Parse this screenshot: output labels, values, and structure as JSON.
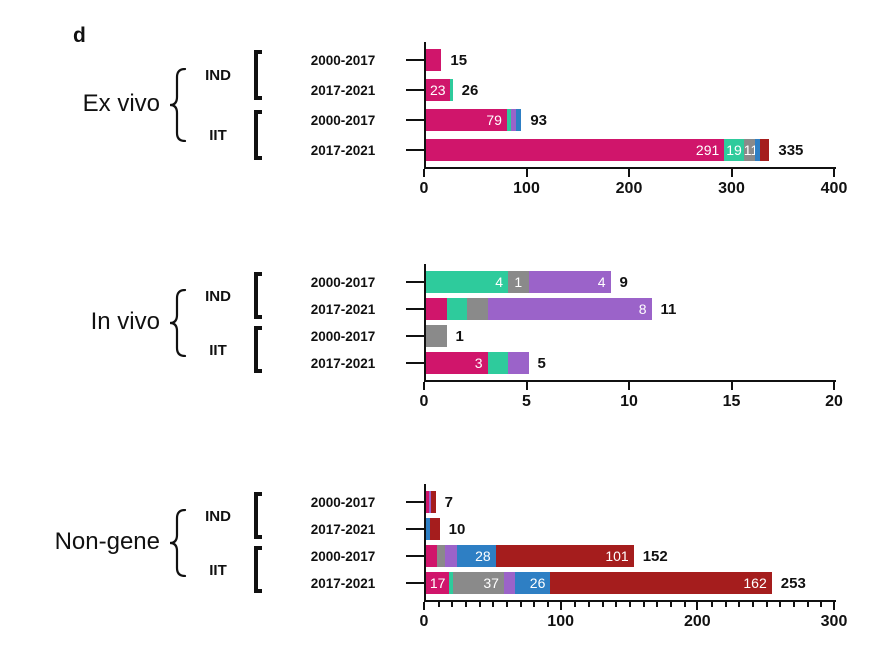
{
  "figure": {
    "panel_letter": "d"
  },
  "colors": {
    "pink": "#d0156b",
    "green": "#2ecb9c",
    "gray": "#8a8a8a",
    "purple": "#9b63c9",
    "blue": "#2e7fc4",
    "darkred": "#a51d1d",
    "axis": "#111111",
    "bar_label": "#ffffff"
  },
  "chart_data": [
    {
      "type": "bar",
      "orientation": "horizontal",
      "group_label": "Ex vivo",
      "subgroups": [
        "IND",
        "IIT"
      ],
      "axis": {
        "min": 0,
        "max": 400,
        "major_ticks": [
          0,
          100,
          200,
          300,
          400
        ],
        "minor_step": null
      },
      "rows": [
        {
          "subgroup": "IND",
          "period": "2000-2017",
          "total": 15,
          "segments": [
            {
              "series": "pink",
              "value": 15,
              "show_label": false
            }
          ]
        },
        {
          "subgroup": "IND",
          "period": "2017-2021",
          "total": 26,
          "segments": [
            {
              "series": "pink",
              "value": 23,
              "show_label": true
            },
            {
              "series": "green",
              "value": 3,
              "show_label": false
            }
          ]
        },
        {
          "subgroup": "IIT",
          "period": "2000-2017",
          "total": 93,
          "segments": [
            {
              "series": "pink",
              "value": 79,
              "show_label": true
            },
            {
              "series": "green",
              "value": 4,
              "show_label": false
            },
            {
              "series": "purple",
              "value": 5,
              "show_label": false
            },
            {
              "series": "blue",
              "value": 5,
              "show_label": false
            }
          ]
        },
        {
          "subgroup": "IIT",
          "period": "2017-2021",
          "total": 335,
          "segments": [
            {
              "series": "pink",
              "value": 291,
              "show_label": true
            },
            {
              "series": "green",
              "value": 19,
              "show_label": true
            },
            {
              "series": "gray",
              "value": 11,
              "show_label": true
            },
            {
              "series": "blue",
              "value": 5,
              "show_label": false
            },
            {
              "series": "darkred",
              "value": 9,
              "show_label": false
            }
          ]
        }
      ]
    },
    {
      "type": "bar",
      "orientation": "horizontal",
      "group_label": "In vivo",
      "subgroups": [
        "IND",
        "IIT"
      ],
      "axis": {
        "min": 0,
        "max": 20,
        "major_ticks": [
          0,
          5,
          10,
          15,
          20
        ],
        "minor_step": null
      },
      "rows": [
        {
          "subgroup": "IND",
          "period": "2000-2017",
          "total": 9,
          "segments": [
            {
              "series": "green",
              "value": 4,
              "show_label": true
            },
            {
              "series": "gray",
              "value": 1,
              "show_label": true
            },
            {
              "series": "purple",
              "value": 4,
              "show_label": true
            }
          ]
        },
        {
          "subgroup": "IND",
          "period": "2017-2021",
          "total": 11,
          "segments": [
            {
              "series": "pink",
              "value": 1,
              "show_label": false
            },
            {
              "series": "green",
              "value": 1,
              "show_label": false
            },
            {
              "series": "gray",
              "value": 1,
              "show_label": false
            },
            {
              "series": "purple",
              "value": 8,
              "show_label": true
            }
          ]
        },
        {
          "subgroup": "IIT",
          "period": "2000-2017",
          "total": 1,
          "segments": [
            {
              "series": "gray",
              "value": 1,
              "show_label": false
            }
          ]
        },
        {
          "subgroup": "IIT",
          "period": "2017-2021",
          "total": 5,
          "segments": [
            {
              "series": "pink",
              "value": 3,
              "show_label": true
            },
            {
              "series": "green",
              "value": 1,
              "show_label": false
            },
            {
              "series": "purple",
              "value": 1,
              "show_label": false
            }
          ]
        }
      ]
    },
    {
      "type": "bar",
      "orientation": "horizontal",
      "group_label": "Non-gene",
      "subgroups": [
        "IND",
        "IIT"
      ],
      "axis": {
        "min": 0,
        "max": 300,
        "major_ticks": [
          0,
          100,
          200,
          300
        ],
        "minor_step": 10
      },
      "rows": [
        {
          "subgroup": "IND",
          "period": "2000-2017",
          "total": 7,
          "segments": [
            {
              "series": "pink",
              "value": 2,
              "show_label": false
            },
            {
              "series": "purple",
              "value": 2,
              "show_label": false
            },
            {
              "series": "darkred",
              "value": 3,
              "show_label": false
            }
          ]
        },
        {
          "subgroup": "IND",
          "period": "2017-2021",
          "total": 10,
          "segments": [
            {
              "series": "blue",
              "value": 3,
              "show_label": false
            },
            {
              "series": "darkred",
              "value": 7,
              "show_label": false
            }
          ]
        },
        {
          "subgroup": "IIT",
          "period": "2000-2017",
          "total": 152,
          "segments": [
            {
              "series": "pink",
              "value": 8,
              "show_label": false
            },
            {
              "series": "gray",
              "value": 6,
              "show_label": false
            },
            {
              "series": "purple",
              "value": 9,
              "show_label": false
            },
            {
              "series": "blue",
              "value": 28,
              "show_label": true
            },
            {
              "series": "darkred",
              "value": 101,
              "show_label": true
            }
          ]
        },
        {
          "subgroup": "IIT",
          "period": "2017-2021",
          "total": 253,
          "segments": [
            {
              "series": "pink",
              "value": 17,
              "show_label": true
            },
            {
              "series": "green",
              "value": 3,
              "show_label": false
            },
            {
              "series": "gray",
              "value": 37,
              "show_label": true
            },
            {
              "series": "purple",
              "value": 8,
              "show_label": false
            },
            {
              "series": "blue",
              "value": 26,
              "show_label": true
            },
            {
              "series": "darkred",
              "value": 162,
              "show_label": true
            }
          ]
        }
      ]
    }
  ]
}
